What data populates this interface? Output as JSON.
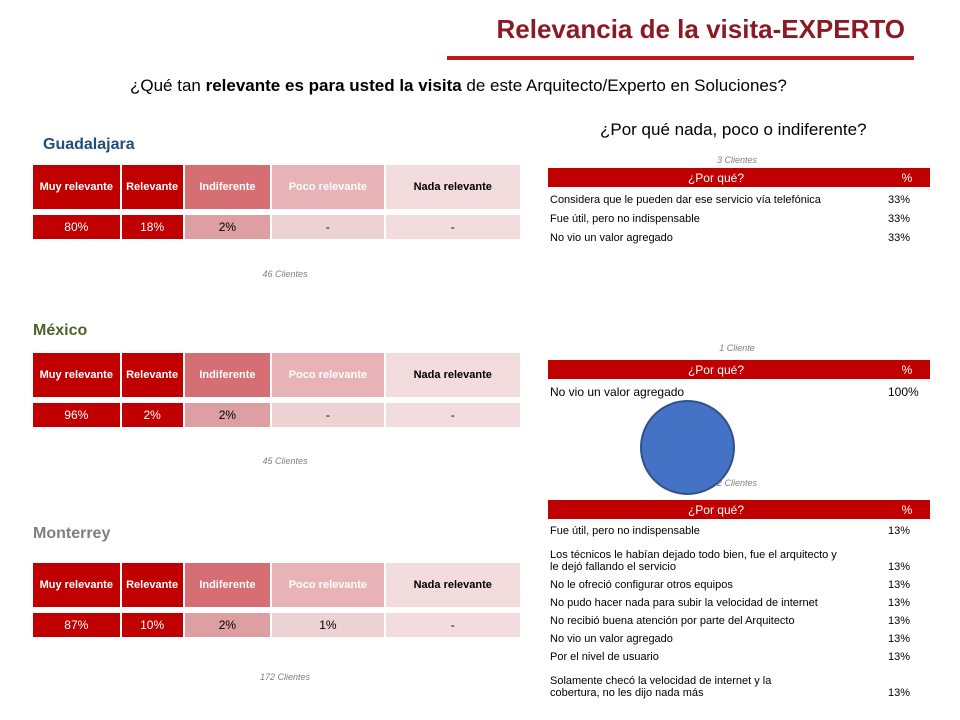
{
  "title": "Relevancia de la visita-EXPERTO",
  "question": {
    "pre": "¿Qué tan ",
    "bold1": "relevante es para usted la visita",
    "post": " de este Arquitecto/Experto en Soluciones?"
  },
  "why_question": "¿Por qué nada, poco o indiferente?",
  "header_labels": [
    "Muy relevante",
    "Relevante",
    "Indiferente",
    "Poco relevante",
    "Nada relevante"
  ],
  "cities": [
    {
      "name": "Guadalajara",
      "values": [
        "80%",
        "18%",
        "2%",
        "-",
        "-"
      ],
      "clients": "46 Clientes"
    },
    {
      "name": "México",
      "values": [
        "96%",
        "2%",
        "2%",
        "-",
        "-"
      ],
      "clients": "45 Clientes"
    },
    {
      "name": "Monterrey",
      "values": [
        "87%",
        "10%",
        "2%",
        "1%",
        "-"
      ],
      "clients": "172 Clientes"
    }
  ],
  "why_tables": [
    {
      "clients": "3 Clientes",
      "head": [
        "¿Por qué?",
        "%"
      ],
      "rows": [
        [
          "Considera que le pueden dar ese servicio vía telefónica",
          "33%"
        ],
        [
          "Fue útil, pero no indispensable",
          "33%"
        ],
        [
          "No vio un valor agregado",
          "33%"
        ]
      ]
    },
    {
      "clients": "1 Cliente",
      "head": [
        "¿Por qué?",
        "%"
      ],
      "rows": [
        [
          "No vio un valor agregado",
          "100%"
        ]
      ]
    },
    {
      "clients": "2 Clientes",
      "head": [
        "¿Por qué?",
        "%"
      ],
      "rows": [
        [
          "Fue útil, pero no indispensable",
          "13%"
        ],
        [
          "Los técnicos le habían dejado todo bien, fue el arquitecto y le dejó fallando el servicio",
          "13%"
        ],
        [
          "No le ofreció configurar otros equipos",
          "13%"
        ],
        [
          "No pudo hacer nada para subir la velocidad de internet",
          "13%"
        ],
        [
          "No recibió buena atención por parte del Arquitecto",
          "13%"
        ],
        [
          "No vio un valor agregado",
          "13%"
        ],
        [
          "Por el nivel de usuario",
          "13%"
        ],
        [
          "Solamente checó la velocidad de internet y la cobertura, no les dijo nada más",
          "13%"
        ]
      ]
    }
  ],
  "colors": {
    "accent": "#c00000",
    "title": "#8b1a24",
    "circle": "#4472c4"
  }
}
